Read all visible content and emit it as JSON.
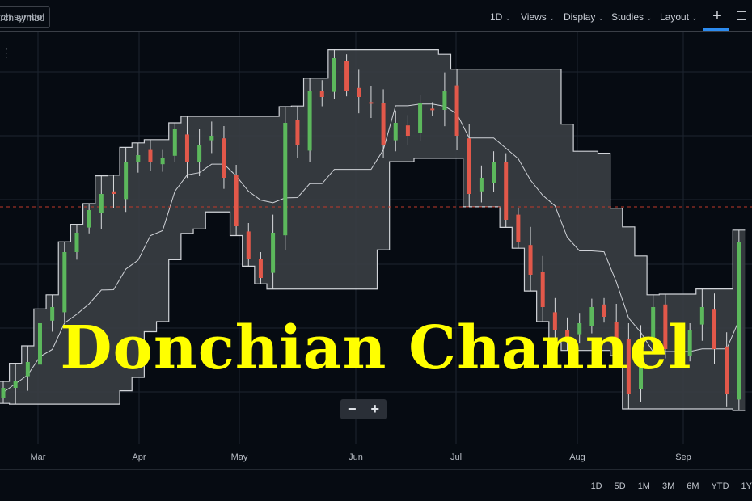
{
  "toolbar": {
    "search_placeholder": "Search symbol",
    "search_visible_text": "arch symbol",
    "interval": "1D",
    "views": "Views",
    "display": "Display",
    "studies": "Studies",
    "layout": "Layout",
    "crosshair_icon": "crosshair-icon",
    "book_icon": "book-icon"
  },
  "overlay_title": "Donchian Channel",
  "zoom": {
    "minus": "−",
    "plus": "+"
  },
  "range_buttons": [
    "1D",
    "5D",
    "1M",
    "3M",
    "6M",
    "YTD",
    "1Y"
  ],
  "colors": {
    "up": "#5cb85c",
    "down": "#e2584a",
    "band_fill": "#3a3e44",
    "band_line": "#d0d3d8",
    "price_line": "#c0392b",
    "title": "#ffff00",
    "background": "#060b12"
  },
  "chart_data": {
    "type": "candlestick",
    "indicator": "Donchian Channel",
    "x_tick_labels": [
      "Mar",
      "Apr",
      "May",
      "Jun",
      "Jul",
      "Aug",
      "Sep"
    ],
    "grid": true,
    "closes": [
      20,
      22,
      28,
      40,
      45,
      62,
      68,
      75,
      80,
      80,
      90,
      92,
      90,
      91,
      100,
      90,
      95,
      98,
      85,
      70,
      60,
      54,
      68,
      102,
      95,
      112,
      110,
      122,
      112,
      110,
      108,
      95,
      102,
      98,
      108,
      106,
      112,
      98,
      80,
      85,
      90,
      72,
      65,
      55,
      45,
      38,
      35,
      40,
      45,
      42,
      35,
      18,
      35,
      45,
      32,
      30,
      38,
      45,
      32,
      18,
      65
    ],
    "current_price_line": 76
  }
}
